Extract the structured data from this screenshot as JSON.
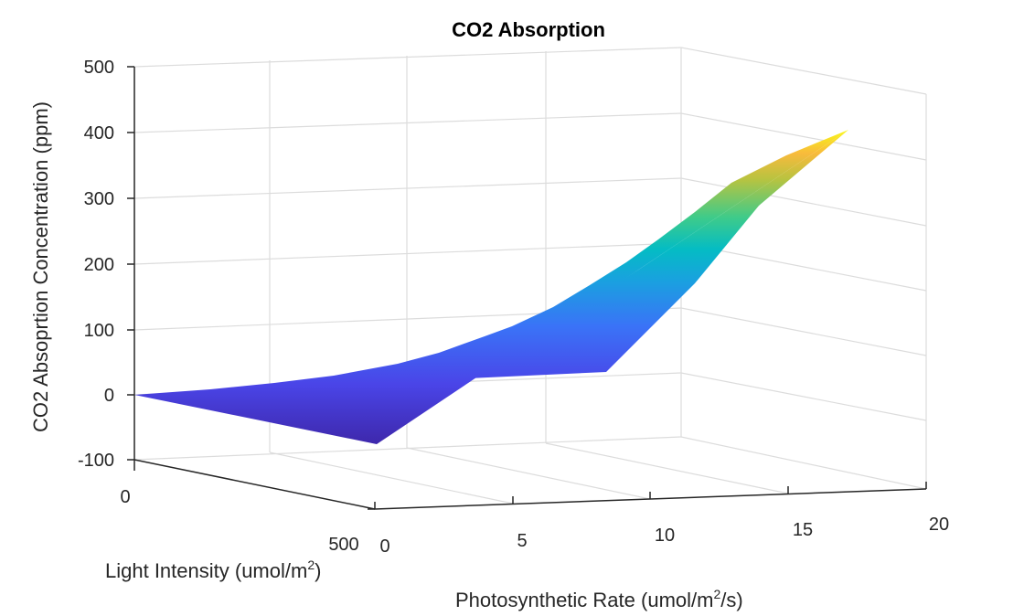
{
  "chart_data": {
    "type": "surface",
    "title": "CO2 Absorption",
    "xlabel": "Photosynthetic  Rate  (umol/m",
    "xlabel_sup": "2",
    "xlabel_tail": "/s)",
    "ylabel": "Light  Intensity  (umol/m",
    "ylabel_sup": "2",
    "ylabel_tail": ")",
    "zlabel": "CO2 Absoprtion Concentration (ppm)",
    "xlim": [
      0,
      20
    ],
    "ylim": [
      0,
      500
    ],
    "zlim": [
      -100,
      500
    ],
    "x_ticks": [
      "0",
      "5",
      "10",
      "15",
      "20"
    ],
    "y_ticks": [
      "0",
      "500"
    ],
    "z_ticks": [
      "500",
      "400",
      "300",
      "200",
      "100",
      "0",
      "-100"
    ],
    "grid": true,
    "colormap": "parula",
    "surface_corners": [
      {
        "x": 0,
        "y": 0,
        "z": 0
      },
      {
        "x": 20,
        "y": 0,
        "z": 420
      },
      {
        "x": 0,
        "y": 500,
        "z": -10
      },
      {
        "x": 20,
        "y": 500,
        "z": 30
      }
    ]
  }
}
